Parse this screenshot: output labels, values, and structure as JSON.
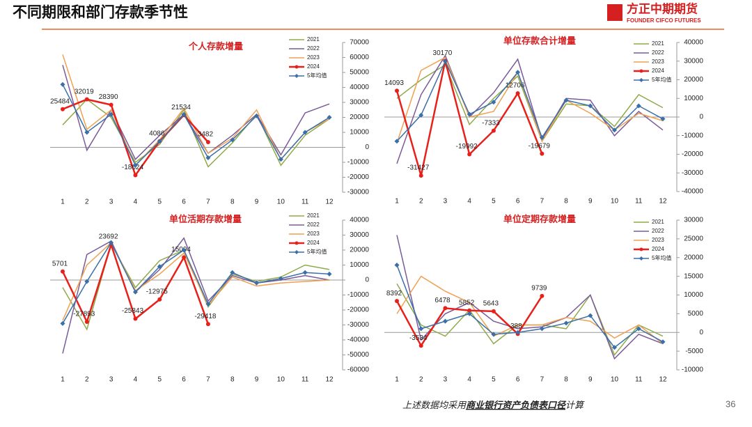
{
  "header": {
    "title": "不同期限和部门存款季节性",
    "logo": "方正中期期货",
    "logo_sub": "FOUNDER CIFCO FUTURES"
  },
  "footer": {
    "parts": [
      "上述数据均采用",
      "商业银行资产负债表口径",
      "计算"
    ],
    "page": "36"
  },
  "chart_data": [
    {
      "type": "line",
      "title": "个人存款增量",
      "categories": [
        "1",
        "2",
        "3",
        "4",
        "5",
        "6",
        "7",
        "8",
        "9",
        "10",
        "11",
        "12"
      ],
      "ylim": [
        -30000,
        70000
      ],
      "yticks": [
        -30000,
        -20000,
        -10000,
        0,
        10000,
        20000,
        30000,
        40000,
        50000,
        60000,
        70000
      ],
      "series": [
        {
          "name": "2021",
          "color": "#8faa4a",
          "values": [
            15000,
            32000,
            20000,
            -10000,
            2000,
            25000,
            -13000,
            3000,
            22000,
            -12000,
            8000,
            19000
          ]
        },
        {
          "name": "2022",
          "color": "#7a5a9a",
          "values": [
            55000,
            -2000,
            25000,
            -8000,
            8000,
            22000,
            -4000,
            8000,
            22000,
            -5000,
            23000,
            29000
          ]
        },
        {
          "name": "2023",
          "color": "#f0a050",
          "values": [
            62000,
            12000,
            25000,
            -12000,
            5000,
            26000,
            -4000,
            6000,
            25000,
            -8000,
            10000,
            19000
          ]
        },
        {
          "name": "2024",
          "color": "#e8201a",
          "values": [
            25484,
            32019,
            28390,
            -18624,
            4086,
            21534,
            3482,
            null,
            null,
            null,
            null,
            null
          ]
        },
        {
          "name": "5年均值",
          "color": "#3a6fa8",
          "values": [
            42000,
            10000,
            22000,
            -12000,
            4000,
            22000,
            -7000,
            5000,
            21000,
            -8000,
            10000,
            20000
          ]
        }
      ]
    },
    {
      "type": "line",
      "title": "单位存款合计增量",
      "categories": [
        "1",
        "2",
        "3",
        "4",
        "5",
        "6",
        "7",
        "8",
        "9",
        "10",
        "11",
        "12"
      ],
      "ylim": [
        -40000,
        40000
      ],
      "yticks": [
        -40000,
        -30000,
        -20000,
        -10000,
        0,
        10000,
        20000,
        30000,
        40000
      ],
      "series": [
        {
          "name": "2021",
          "color": "#8faa4a",
          "values": [
            10000,
            20000,
            28000,
            -4000,
            10000,
            22000,
            -13000,
            7000,
            6000,
            -5000,
            12000,
            5000
          ]
        },
        {
          "name": "2022",
          "color": "#7a5a9a",
          "values": [
            -25000,
            12000,
            33000,
            0,
            13000,
            31000,
            -12000,
            10000,
            9000,
            -10000,
            3000,
            -7000
          ]
        },
        {
          "name": "2023",
          "color": "#f0a050",
          "values": [
            -14000,
            25000,
            32000,
            0,
            3000,
            24000,
            -13000,
            9000,
            2000,
            -7000,
            2000,
            -2000
          ]
        },
        {
          "name": "2024",
          "color": "#e8201a",
          "values": [
            14093,
            -31427,
            30170,
            -19992,
            -7333,
            12706,
            -19679,
            null,
            null,
            null,
            null,
            null
          ]
        },
        {
          "name": "5年均值",
          "color": "#3a6fa8",
          "values": [
            -13000,
            1000,
            30000,
            1500,
            8000,
            24000,
            -11000,
            9000,
            6000,
            -7000,
            6000,
            -1000
          ]
        }
      ]
    },
    {
      "type": "line",
      "title": "单位活期存款增量",
      "categories": [
        "1",
        "2",
        "3",
        "4",
        "5",
        "6",
        "7",
        "8",
        "9",
        "10",
        "11",
        "12"
      ],
      "ylim": [
        -60000,
        40000
      ],
      "yticks": [
        -60000,
        -50000,
        -40000,
        -30000,
        -20000,
        -10000,
        0,
        10000,
        20000,
        30000,
        40000
      ],
      "series": [
        {
          "name": "2021",
          "color": "#8faa4a",
          "values": [
            -5000,
            -33000,
            24000,
            -5000,
            13000,
            20000,
            -18000,
            4000,
            -1000,
            2000,
            10000,
            7000
          ]
        },
        {
          "name": "2022",
          "color": "#7a5a9a",
          "values": [
            -49000,
            17000,
            26000,
            -8000,
            7000,
            28000,
            -14000,
            3000,
            -2000,
            0,
            3000,
            0
          ]
        },
        {
          "name": "2023",
          "color": "#f0a050",
          "values": [
            -27000,
            10000,
            25000,
            -7000,
            4000,
            18000,
            -17000,
            2000,
            -4000,
            -2000,
            -1000,
            0
          ]
        },
        {
          "name": "2024",
          "color": "#e8201a",
          "values": [
            5701,
            -27893,
            23692,
            -25843,
            -12975,
            15094,
            -29418,
            null,
            null,
            null,
            null,
            null
          ]
        },
        {
          "name": "5年均值",
          "color": "#3a6fa8",
          "values": [
            -29000,
            -1000,
            25000,
            -8000,
            9000,
            20000,
            -16000,
            5000,
            -2000,
            1000,
            5000,
            4000
          ]
        }
      ]
    },
    {
      "type": "line",
      "title": "单位定期存款增量",
      "categories": [
        "1",
        "2",
        "3",
        "4",
        "5",
        "6",
        "7",
        "8",
        "9",
        "10",
        "11",
        "12"
      ],
      "ylim": [
        -10000,
        30000
      ],
      "yticks": [
        -10000,
        -5000,
        0,
        5000,
        10000,
        15000,
        20000,
        25000,
        30000
      ],
      "series": [
        {
          "name": "2021",
          "color": "#8faa4a",
          "values": [
            13000,
            2000,
            -1000,
            6000,
            -3000,
            2000,
            2000,
            1000,
            10000,
            -6000,
            2000,
            -1000
          ]
        },
        {
          "name": "2022",
          "color": "#7a5a9a",
          "values": [
            26000,
            -2000,
            5000,
            8000,
            3000,
            1000,
            1500,
            4000,
            10000,
            -7000,
            -500,
            -3000
          ]
        },
        {
          "name": "2023",
          "color": "#f0a050",
          "values": [
            5000,
            15000,
            11000,
            8000,
            -1000,
            2000,
            2000,
            4000,
            3000,
            -1500,
            2000,
            -3000
          ]
        },
        {
          "name": "2024",
          "color": "#e8201a",
          "values": [
            8392,
            -3534,
            6478,
            5852,
            5643,
            -388,
            9739,
            null,
            null,
            null,
            null,
            null
          ]
        },
        {
          "name": "5年均值",
          "color": "#3a6fa8",
          "values": [
            18000,
            1000,
            3000,
            5000,
            -500,
            0,
            1000,
            2500,
            4500,
            -4000,
            1000,
            -2500
          ]
        }
      ]
    }
  ]
}
